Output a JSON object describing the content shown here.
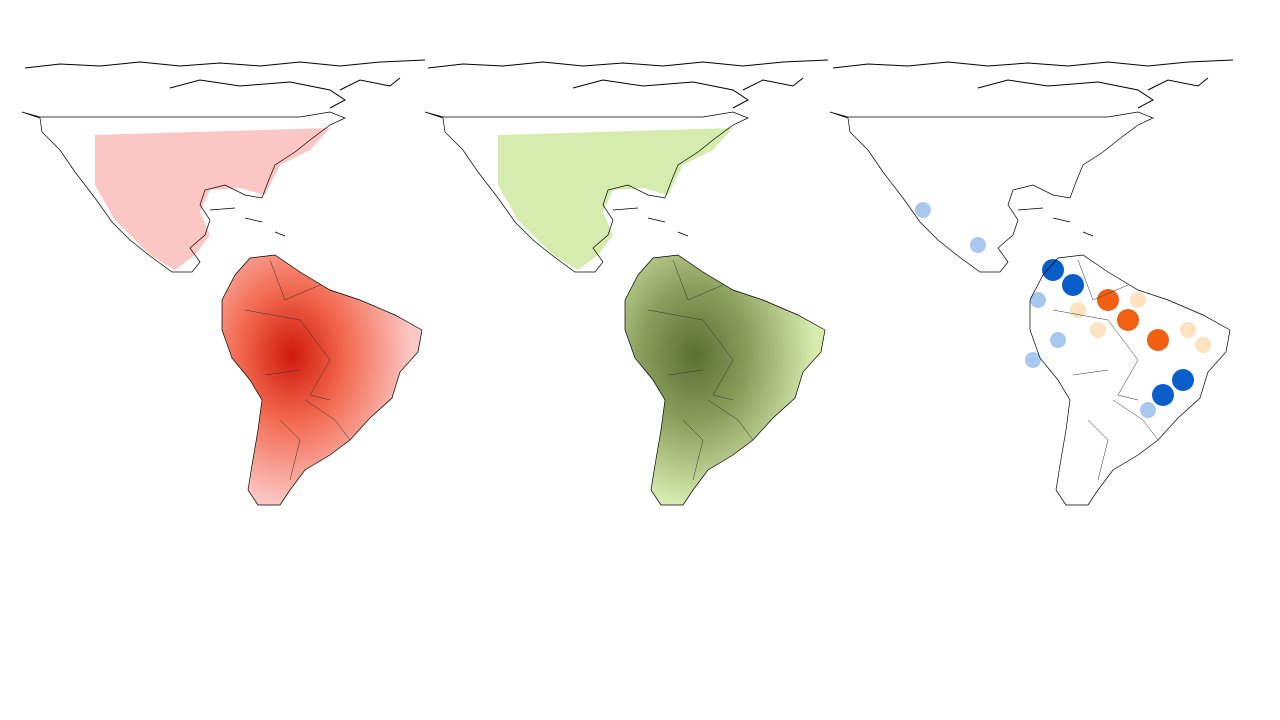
{
  "panels": [
    {
      "id": "panel-1",
      "scheme": "reds",
      "colors": {
        "low": "#fbc7c4",
        "mid": "#f26a50",
        "high": "#d01a0a"
      }
    },
    {
      "id": "panel-2",
      "scheme": "greens",
      "colors": {
        "low": "#d6ecae",
        "mid": "#8a9e5c",
        "high": "#5a7032"
      }
    },
    {
      "id": "panel-3",
      "scheme": "diverging",
      "colors": {
        "neg_strong": "#0a5ec9",
        "neg_weak": "#a9c8f0",
        "pos_weak": "#fde3bf",
        "pos_strong": "#f06010"
      }
    }
  ],
  "outline_color": "#000000"
}
